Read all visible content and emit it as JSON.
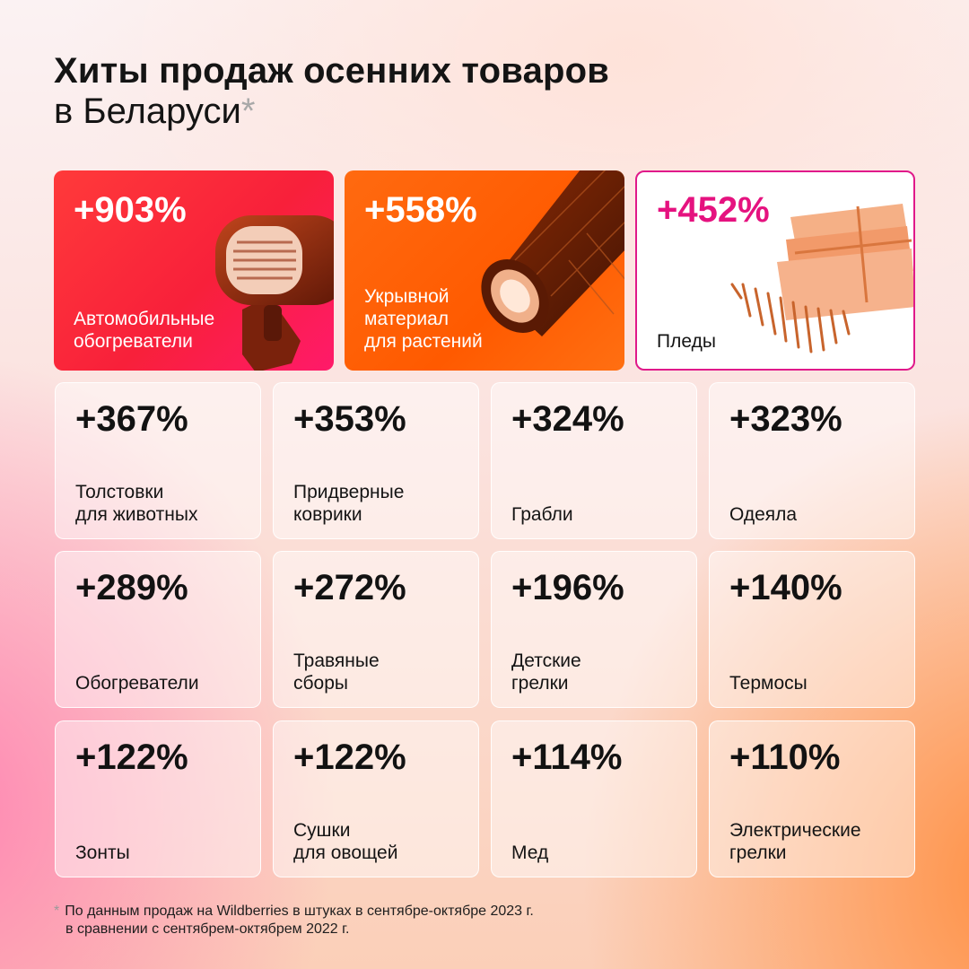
{
  "header": {
    "title": "Хиты продаж осенних товаров",
    "subtitle": "в Беларуси",
    "asterisk": "*"
  },
  "featured": [
    {
      "percent": "+903%",
      "label": "Автомобильные\nобогреватели",
      "icon": "car-heater-icon"
    },
    {
      "percent": "+558%",
      "label": "Укрывной\nматериал\nдля растений",
      "icon": "fabric-roll-icon"
    },
    {
      "percent": "+452%",
      "label": "Пледы",
      "icon": "plaid-icon"
    }
  ],
  "items": [
    {
      "percent": "+367%",
      "label": "Толстовки\nдля животных"
    },
    {
      "percent": "+353%",
      "label": "Придверные\nковрики"
    },
    {
      "percent": "+324%",
      "label": "Грабли"
    },
    {
      "percent": "+323%",
      "label": "Одеяла"
    },
    {
      "percent": "+289%",
      "label": "Обогреватели"
    },
    {
      "percent": "+272%",
      "label": "Травяные\nсборы"
    },
    {
      "percent": "+196%",
      "label": "Детские\nгрелки"
    },
    {
      "percent": "+140%",
      "label": "Термосы"
    },
    {
      "percent": "+122%",
      "label": "Зонты"
    },
    {
      "percent": "+122%",
      "label": "Сушки\nдля овощей"
    },
    {
      "percent": "+114%",
      "label": "Мед"
    },
    {
      "percent": "+110%",
      "label": "Электрические\nгрелки"
    }
  ],
  "footnote": {
    "star": "*",
    "line1": "По данным продаж на Wildberries в штуках в сентябре-октябре 2023 г.",
    "line2": "в сравнении с сентябрем-октябрем 2022 г."
  },
  "colors": {
    "featured_1": "#f8203a",
    "featured_2": "#ff5a00",
    "featured_3_accent": "#e5127f"
  }
}
